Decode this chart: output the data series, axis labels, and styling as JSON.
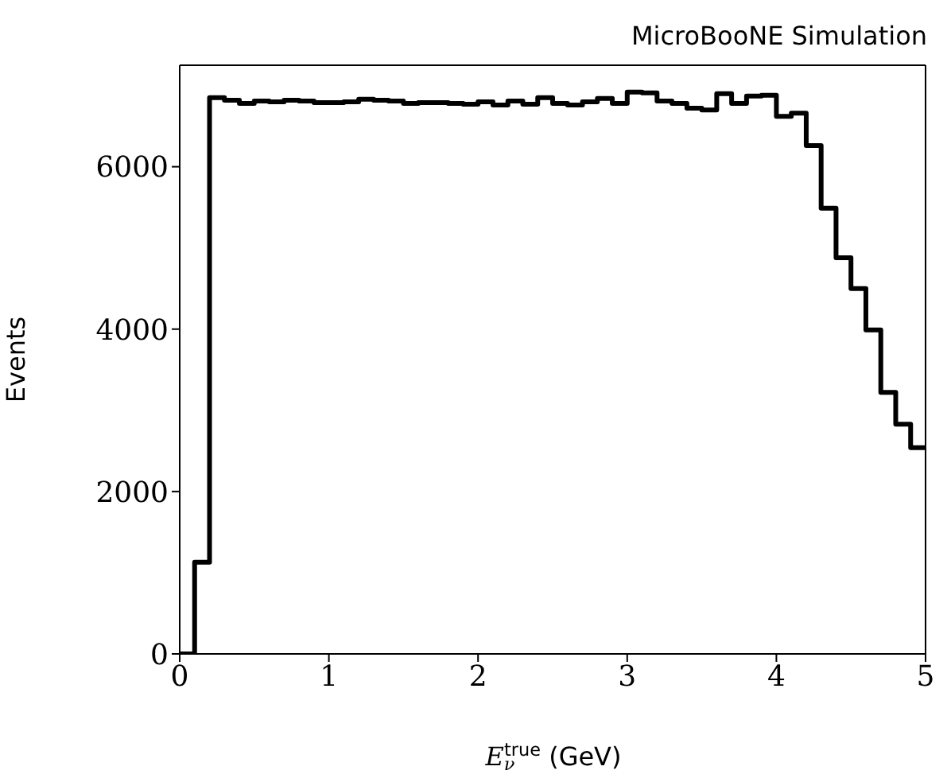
{
  "chart_data": {
    "type": "histogram",
    "title": "MicroBooNE Simulation",
    "xlabel": "E$_{ν}$$^{true}$ (GeV)",
    "ylabel": "Events",
    "bins": [
      0,
      0.1,
      0.2,
      0.3,
      0.4,
      0.5,
      0.6,
      0.7,
      0.8,
      0.9,
      1.0,
      1.1,
      1.2,
      1.3,
      1.4,
      1.5,
      1.6,
      1.7,
      1.8,
      1.9,
      2.0,
      2.1,
      2.2,
      2.3,
      2.4,
      2.5,
      2.6,
      2.7,
      2.8,
      2.9,
      3.0,
      3.1,
      3.2,
      3.3,
      3.4,
      3.5,
      3.6,
      3.7,
      3.8,
      3.9,
      4.0,
      4.1,
      4.2,
      4.3,
      4.4,
      4.5,
      4.6,
      4.7,
      4.8,
      4.9,
      5.0
    ],
    "values": [
      0,
      1130,
      6850,
      6820,
      6780,
      6810,
      6800,
      6820,
      6810,
      6790,
      6790,
      6800,
      6830,
      6820,
      6810,
      6780,
      6790,
      6790,
      6780,
      6770,
      6800,
      6760,
      6810,
      6770,
      6850,
      6780,
      6760,
      6800,
      6840,
      6780,
      6920,
      6910,
      6810,
      6780,
      6720,
      6700,
      6900,
      6780,
      6870,
      6880,
      6620,
      6660,
      6260,
      5490,
      4880,
      4500,
      3990,
      3220,
      2830,
      2540
    ],
    "color": "#000000",
    "xlim": [
      0,
      5
    ],
    "ylim": [
      0,
      7250
    ],
    "xticks": [
      0,
      1,
      2,
      3,
      4,
      5
    ],
    "yticks": [
      0,
      2000,
      4000,
      6000
    ]
  }
}
